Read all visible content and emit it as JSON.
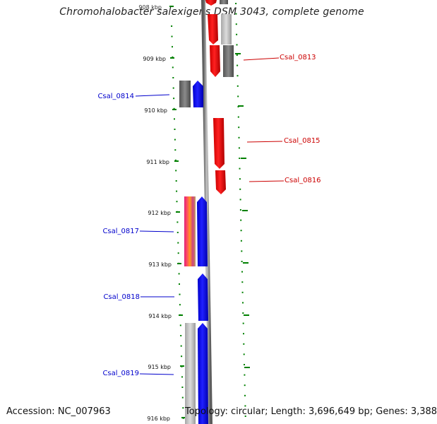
{
  "title": "Chromohalobacter salexigens DSM 3043, complete genome",
  "footer": {
    "accession": "Accession: NC_007963",
    "summary": "Topology: circular; Length: 3,696,649 bp; Genes: 3,388"
  },
  "ruler": {
    "ticks": [
      "908 kbp",
      "909 kbp",
      "910 kbp",
      "911 kbp",
      "912 kbp",
      "913 kbp",
      "914 kbp",
      "915 kbp",
      "916 kbp"
    ]
  },
  "colors": {
    "forward": "#ff0000",
    "reverse": "#0000ff",
    "backbone": "#888888",
    "tick": "#008000",
    "gray_gene": "#666666",
    "light_gray_gene": "#bbbbbb"
  },
  "gene_labels": {
    "forward": [
      "Csal_0813",
      "Csal_0815",
      "Csal_0816"
    ],
    "reverse": [
      "Csal_0814",
      "Csal_0817",
      "Csal_0818",
      "Csal_0819"
    ]
  }
}
